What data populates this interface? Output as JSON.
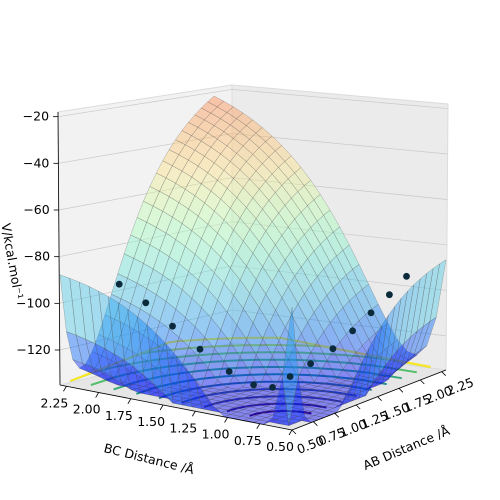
{
  "chart_data": {
    "type": "surface3d",
    "xlabel": "AB Distance /Å",
    "ylabel": "BC Distance /Å",
    "zlabel": "V/kcal.mol⁻¹",
    "x_ticks": [
      "0.50",
      "0.75",
      "1.00",
      "1.25",
      "1.50",
      "1.75",
      "2.00",
      "2.25"
    ],
    "y_ticks": [
      "0.50",
      "0.75",
      "1.00",
      "1.25",
      "1.50",
      "1.75",
      "2.00",
      "2.25"
    ],
    "z_ticks": [
      "−120",
      "−100",
      "−80",
      "−60",
      "−40",
      "−20"
    ],
    "xlim": [
      0.5,
      2.3
    ],
    "ylim": [
      0.5,
      2.3
    ],
    "zlim": [
      -135,
      -18
    ],
    "surface_colormap": "rainbow",
    "contour_colormap": "viridis",
    "grid": true,
    "trajectory": {
      "color": "#0b2b3c",
      "points": [
        {
          "ab": 2.2,
          "bc": 0.74,
          "v": -96
        },
        {
          "ab": 2.0,
          "bc": 0.74,
          "v": -101
        },
        {
          "ab": 1.8,
          "bc": 0.75,
          "v": -106
        },
        {
          "ab": 1.6,
          "bc": 0.76,
          "v": -111
        },
        {
          "ab": 1.4,
          "bc": 0.78,
          "v": -116
        },
        {
          "ab": 1.2,
          "bc": 0.82,
          "v": -120
        },
        {
          "ab": 1.05,
          "bc": 0.88,
          "v": -124
        },
        {
          "ab": 0.95,
          "bc": 0.95,
          "v": -128
        },
        {
          "ab": 0.88,
          "bc": 1.05,
          "v": -127
        },
        {
          "ab": 0.82,
          "bc": 1.2,
          "v": -122
        },
        {
          "ab": 0.78,
          "bc": 1.4,
          "v": -114
        },
        {
          "ab": 0.76,
          "bc": 1.6,
          "v": -106
        },
        {
          "ab": 0.75,
          "bc": 1.8,
          "v": -98
        },
        {
          "ab": 0.74,
          "bc": 2.0,
          "v": -92
        }
      ]
    }
  }
}
